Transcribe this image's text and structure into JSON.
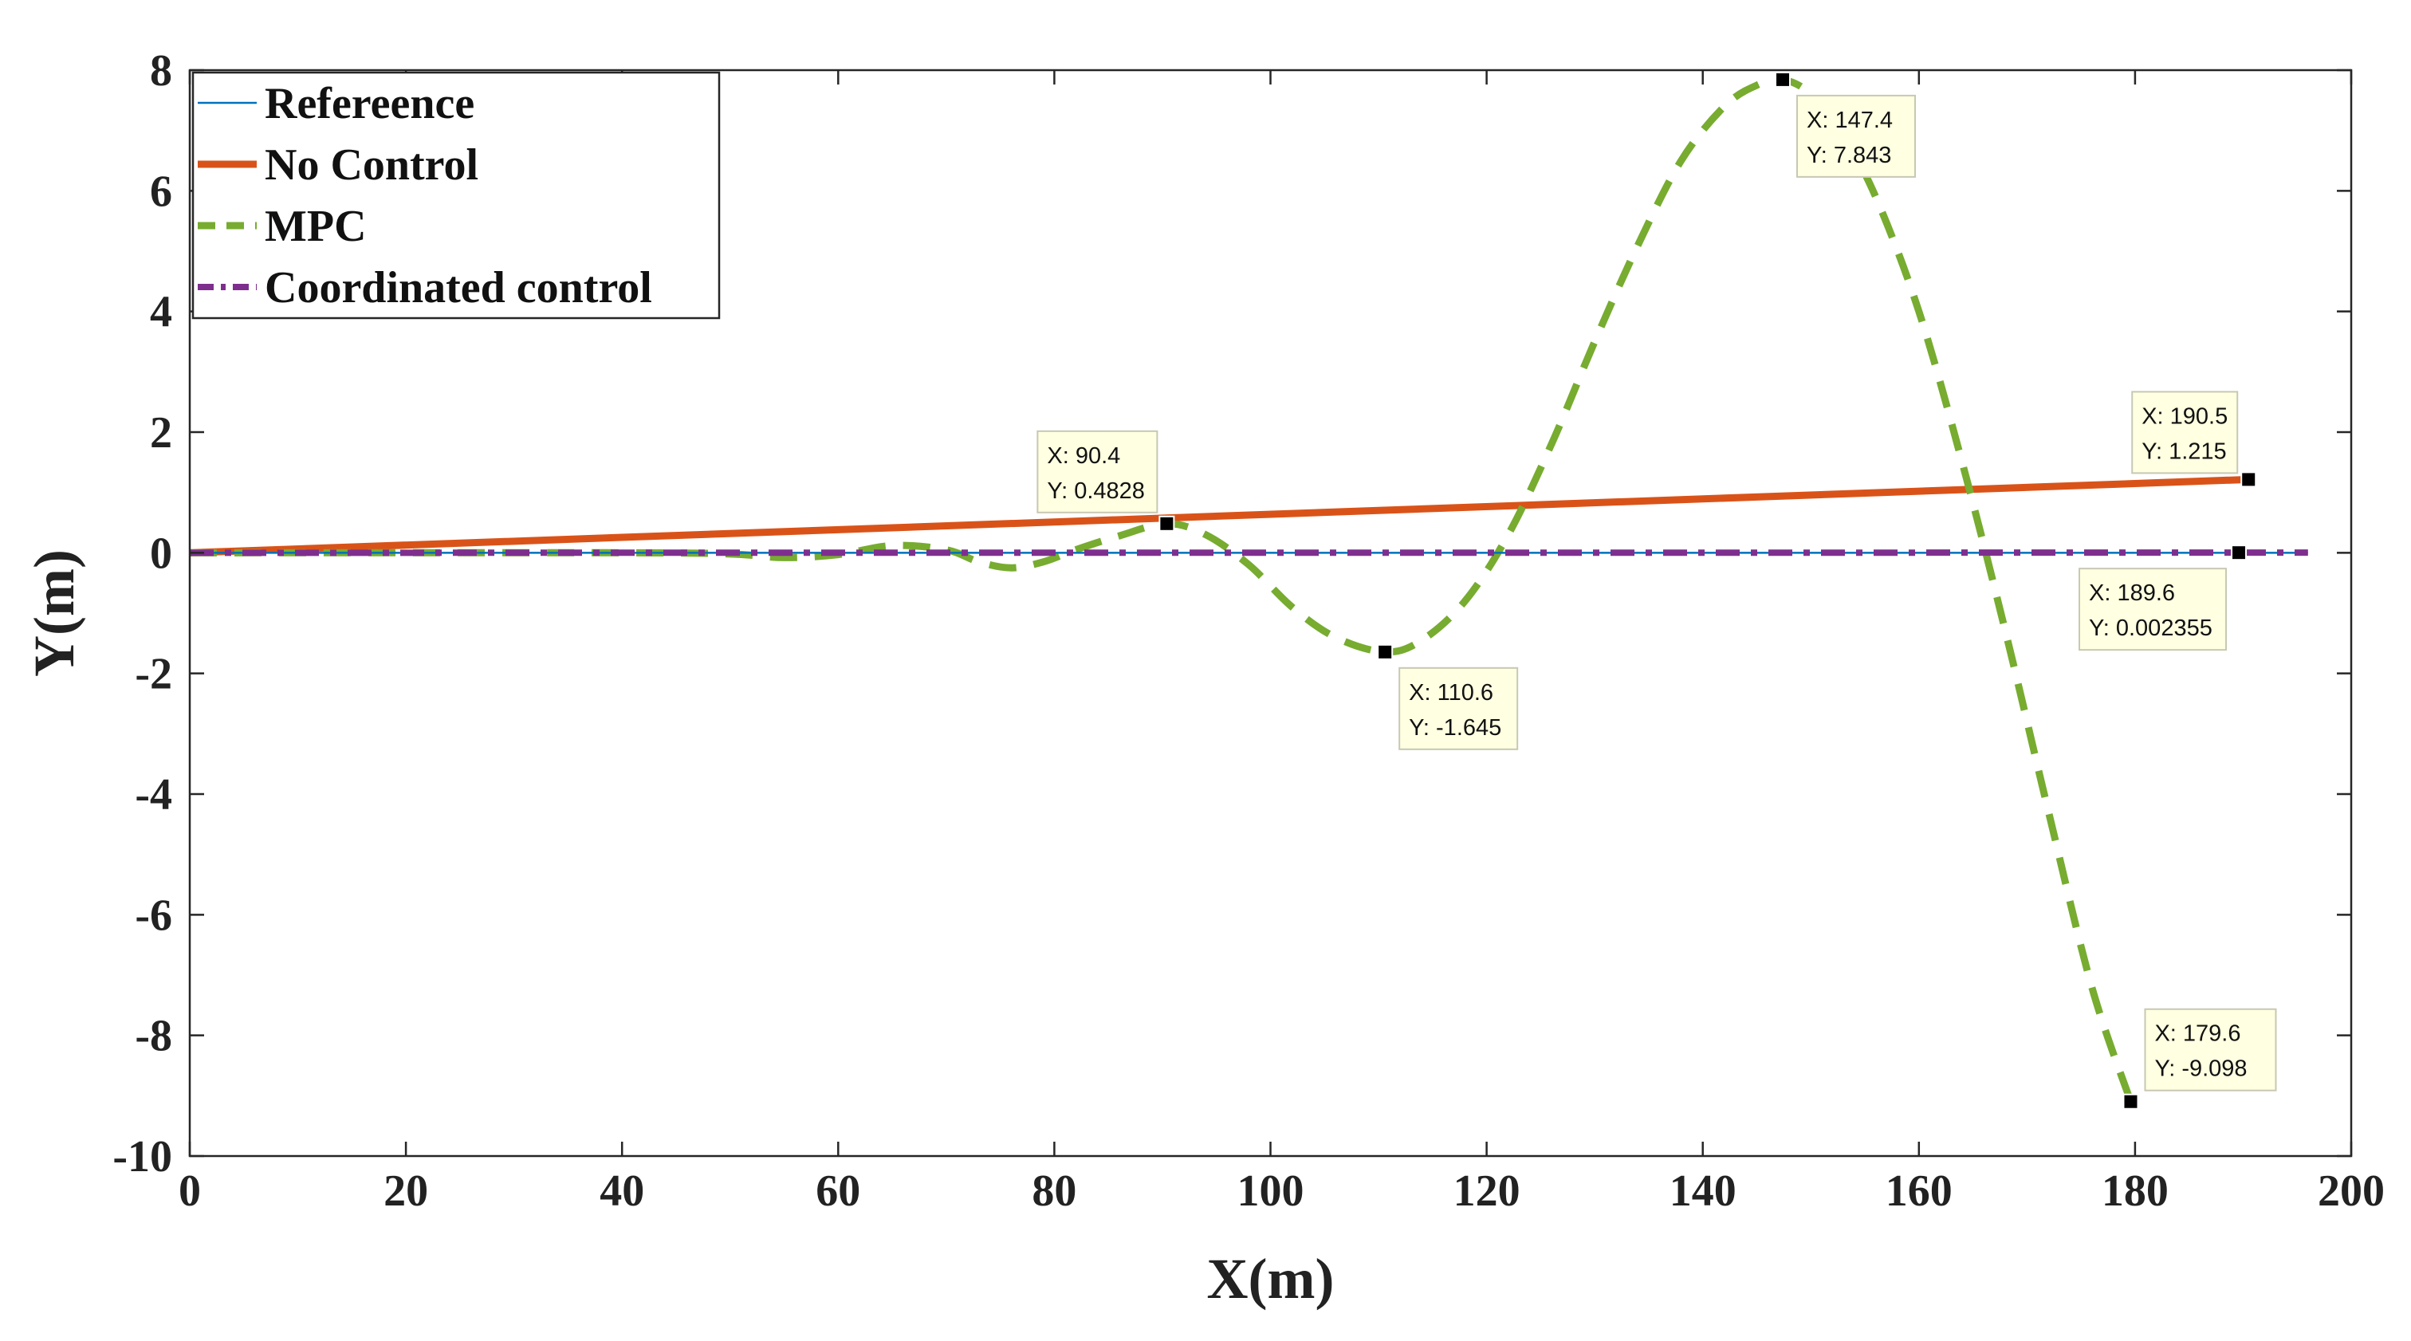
{
  "chart_data": {
    "type": "line",
    "title": "",
    "xlabel": "X(m)",
    "ylabel": "Y(m)",
    "xlim": [
      0,
      200
    ],
    "ylim": [
      -10,
      8
    ],
    "xticks": [
      0,
      20,
      40,
      60,
      80,
      100,
      120,
      140,
      160,
      180,
      200
    ],
    "yticks": [
      -10,
      -8,
      -6,
      -4,
      -2,
      0,
      2,
      4,
      6,
      8
    ],
    "grid": false,
    "legend_position": "top-left",
    "series": [
      {
        "name": "Refereence",
        "color": "#0072BD",
        "style": "solid-thin",
        "x": [
          0,
          196
        ],
        "y": [
          0,
          0
        ]
      },
      {
        "name": "No Control",
        "color": "#D95319",
        "style": "solid-thick",
        "x": [
          0,
          190.5
        ],
        "y": [
          0,
          1.215
        ]
      },
      {
        "name": "MPC",
        "color": "#77AC30",
        "style": "dashed",
        "x": [
          0,
          40,
          50,
          55,
          60,
          65,
          70,
          73,
          76,
          79,
          82,
          86,
          90.4,
          94,
          98,
          102,
          106,
          110.6,
          114,
          118,
          122,
          126,
          130,
          134,
          138,
          142,
          145,
          147.4,
          150,
          153,
          156,
          160,
          164,
          168,
          172,
          176,
          179.6
        ],
        "y": [
          0,
          0,
          -0.02,
          -0.08,
          -0.03,
          0.12,
          0.05,
          -0.15,
          -0.25,
          -0.15,
          0.05,
          0.28,
          0.4828,
          0.3,
          -0.2,
          -0.9,
          -1.4,
          -1.645,
          -1.45,
          -0.8,
          0.3,
          1.8,
          3.5,
          5.1,
          6.5,
          7.4,
          7.75,
          7.843,
          7.6,
          6.9,
          5.9,
          4.0,
          1.5,
          -1.3,
          -4.3,
          -7.2,
          -9.098
        ]
      },
      {
        "name": "Coordinated control",
        "color": "#7E2F8E",
        "style": "dash-dot",
        "x": [
          0,
          196
        ],
        "y": [
          0,
          0.002355
        ]
      }
    ],
    "datatips": [
      {
        "x": 90.4,
        "y": 0.4828,
        "x_text": "X: 90.4",
        "y_text": "Y: 0.4828"
      },
      {
        "x": 110.6,
        "y": -1.645,
        "x_text": "X: 110.6",
        "y_text": "Y: -1.645"
      },
      {
        "x": 147.4,
        "y": 7.843,
        "x_text": "X: 147.4",
        "y_text": "Y: 7.843"
      },
      {
        "x": 190.5,
        "y": 1.215,
        "x_text": "X: 190.5",
        "y_text": "Y: 1.215"
      },
      {
        "x": 189.6,
        "y": 0.002355,
        "x_text": "X: 189.6",
        "y_text": "Y: 0.002355"
      },
      {
        "x": 179.6,
        "y": -9.098,
        "x_text": "X: 179.6",
        "y_text": "Y: -9.098"
      }
    ]
  }
}
